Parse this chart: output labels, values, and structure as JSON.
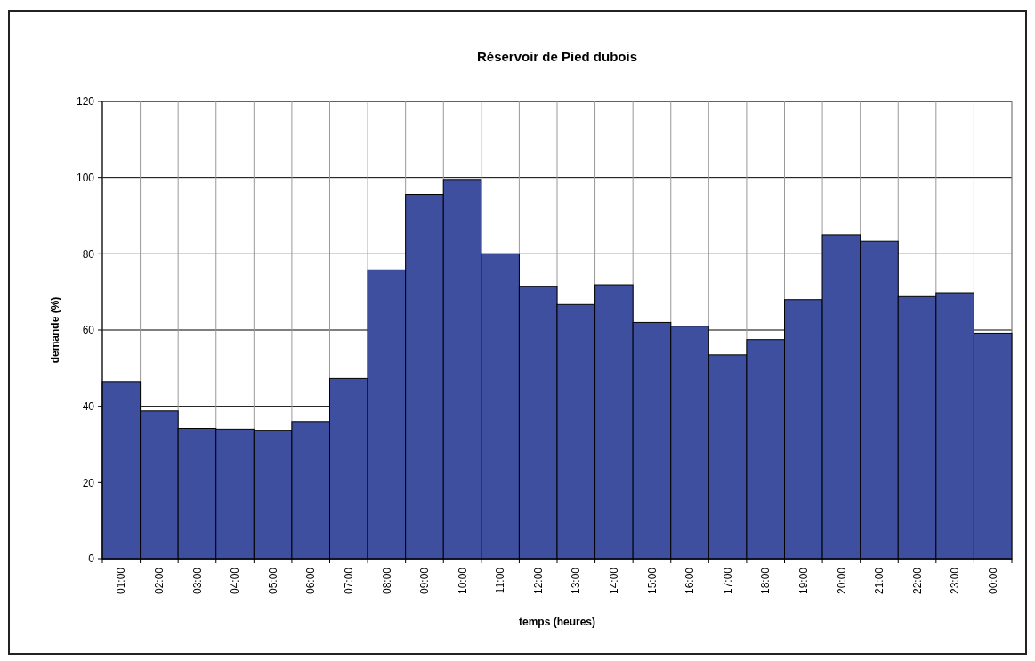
{
  "chart_data": {
    "type": "bar",
    "title": "Réservoir de Pied dubois",
    "xlabel": "temps (heures)",
    "ylabel": "demande (%)",
    "categories": [
      "01:00",
      "02:00",
      "03:00",
      "04:00",
      "05:00",
      "06:00",
      "07:00",
      "08:00",
      "09:00",
      "10:00",
      "11:00",
      "12:00",
      "13:00",
      "14:00",
      "15:00",
      "16:00",
      "17:00",
      "18:00",
      "19:00",
      "20:00",
      "21:00",
      "22:00",
      "23:00",
      "00:00"
    ],
    "values": [
      46.5,
      38.8,
      34.2,
      34,
      33.7,
      36,
      47.3,
      75.8,
      95.6,
      99.5,
      80,
      71.4,
      66.7,
      71.9,
      62,
      61,
      53.5,
      57.5,
      68,
      85,
      83.3,
      68.8,
      69.8,
      59.2
    ],
    "color": "#3f4fa0",
    "ylim": [
      0,
      120
    ],
    "yticks": [
      0,
      20,
      40,
      60,
      80,
      100,
      120
    ],
    "grid": true
  }
}
